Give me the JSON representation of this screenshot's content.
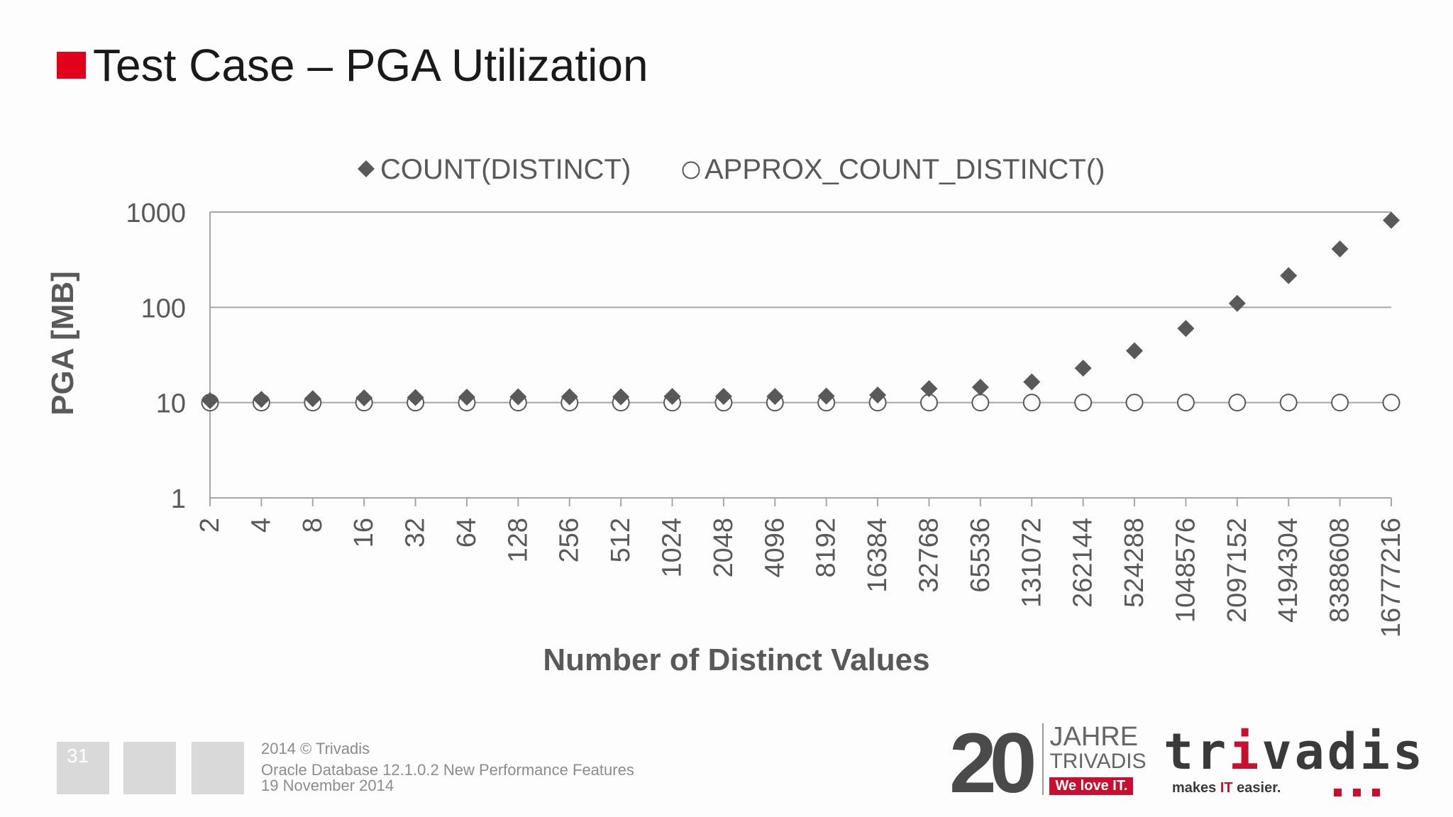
{
  "slide": {
    "title": "Test Case – PGA Utilization",
    "accent_color": "#e2001a",
    "page_number": "31"
  },
  "footer": {
    "copyright": "2014 © Trivadis",
    "talk_title": "Oracle Database 12.1.0.2 New Performance Features",
    "date": "19 November 2014"
  },
  "logos": {
    "anniversary": {
      "number": "20",
      "line1": "JAHRE",
      "line2": "TRIVADIS",
      "slogan": "We love IT."
    },
    "brand": {
      "name_part1": "tr",
      "name_accent": "i",
      "name_part2": "vadis",
      "tagline_part1": "makes ",
      "tagline_accent": "IT",
      "tagline_part2": " easier.",
      "accent_color": "#c8102e"
    }
  },
  "chart_data": {
    "type": "scatter",
    "title": "",
    "xlabel": "Number of Distinct Values",
    "ylabel": "PGA [MB]",
    "yscale": "log",
    "ylim": [
      1,
      1000
    ],
    "yticks": [
      "1",
      "10",
      "100",
      "1000"
    ],
    "grid": "horizontal",
    "legend_position": "top",
    "categories": [
      "2",
      "4",
      "8",
      "16",
      "32",
      "64",
      "128",
      "256",
      "512",
      "1024",
      "2048",
      "4096",
      "8192",
      "16384",
      "32768",
      "65536",
      "131072",
      "262144",
      "524288",
      "1048576",
      "2097152",
      "4194304",
      "8388608",
      "16777216"
    ],
    "series": [
      {
        "name": "COUNT(DISTINCT)",
        "marker": "filled-diamond",
        "color": "#595959",
        "values": [
          10.5,
          10.8,
          11,
          11.2,
          11.3,
          11.4,
          11.5,
          11.5,
          11.5,
          11.6,
          11.6,
          11.6,
          11.7,
          12,
          14,
          14.5,
          16.5,
          23,
          35,
          60,
          110,
          215,
          410,
          820
        ]
      },
      {
        "name": "APPROX_COUNT_DISTINCT()",
        "marker": "hollow-circle",
        "color": "#595959",
        "values": [
          10,
          10,
          10,
          10,
          10,
          10,
          10,
          10,
          10,
          10,
          10,
          10,
          10,
          10,
          10,
          10,
          10,
          10,
          10,
          10,
          10,
          10,
          10,
          10
        ]
      }
    ]
  }
}
